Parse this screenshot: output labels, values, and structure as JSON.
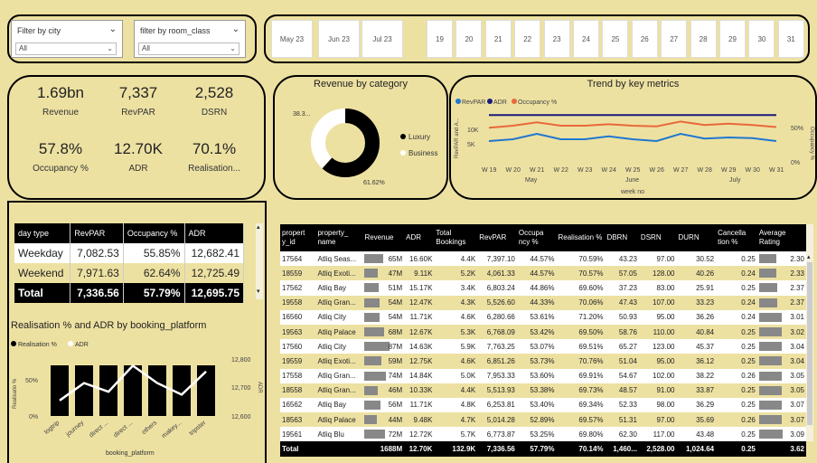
{
  "filters": [
    {
      "title": "Filter by city",
      "value": "All"
    },
    {
      "title": "filter by room_class",
      "value": "All"
    }
  ],
  "months": [
    "May 23",
    "Jun 23",
    "Jul 23"
  ],
  "days": [
    "19",
    "20",
    "21",
    "22",
    "23",
    "24",
    "25",
    "26",
    "27",
    "28",
    "29",
    "30",
    "31"
  ],
  "kpis": [
    {
      "value": "1.69bn",
      "label": "Revenue"
    },
    {
      "value": "7,337",
      "label": "RevPAR"
    },
    {
      "value": "2,528",
      "label": "DSRN"
    },
    {
      "value": "57.8%",
      "label": "Occupancy %"
    },
    {
      "value": "12.70K",
      "label": "ADR"
    },
    {
      "value": "70.1%",
      "label": "Realisation..."
    }
  ],
  "revenue_chart": {
    "title": "Revenue by category",
    "legend": [
      "Luxury",
      "Business"
    ],
    "colors": [
      "#000000",
      "#ffffff"
    ],
    "label_a": "38.3...",
    "label_b": "61.62%"
  },
  "trend_chart": {
    "title": "Trend by key metrics",
    "legend": [
      "RevPAR",
      "ADR",
      "Occupancy %"
    ],
    "colors": [
      "#1f77d0",
      "#1a1a7a",
      "#e8693a"
    ],
    "y_left_label": "RevPAR and A...",
    "y_left_ticks": [
      "10K",
      "5K"
    ],
    "y_right_label": "Occupancy %",
    "y_right_ticks": [
      "50%",
      "0%"
    ],
    "x_ticks": [
      "W 19",
      "W 20",
      "W 21",
      "W 22",
      "W 23",
      "W 24",
      "W 25",
      "W 26",
      "W 27",
      "W 28",
      "W 29",
      "W 30",
      "W 31"
    ],
    "month_labels": [
      "May",
      "June",
      "July"
    ],
    "x_title": "week no"
  },
  "day_table": {
    "headers": [
      "day type",
      "RevPAR",
      "Occupancy %",
      "ADR"
    ],
    "rows": [
      [
        "Weekday",
        "7,082.53",
        "55.85%",
        "12,682.41"
      ],
      [
        "Weekend",
        "7,971.63",
        "62.64%",
        "12,725.49"
      ]
    ],
    "total": [
      "Total",
      "7,336.56",
      "57.79%",
      "12,695.75"
    ]
  },
  "platform_chart": {
    "title": "Realisation % and ADR by booking_platform",
    "legend": [
      "Realisation %",
      "ADR"
    ],
    "y_left_label": "Realisatio %",
    "y_left_ticks": [
      "50%",
      "0%"
    ],
    "y_right_label": "ADR",
    "y_right_ticks": [
      "12,800",
      "12,700",
      "12,600"
    ],
    "x_title": "booking_platform",
    "categories": [
      "logtrip",
      "journey",
      "direct ...",
      "direct ...",
      "others",
      "makey...",
      "tripster"
    ]
  },
  "chart_data": [
    {
      "type": "pie",
      "title": "Revenue by category",
      "categories": [
        "Luxury",
        "Business"
      ],
      "values": [
        61.62,
        38.38
      ]
    },
    {
      "type": "line",
      "title": "Trend by key metrics",
      "xlabel": "week no",
      "x": [
        "W 19",
        "W 20",
        "W 21",
        "W 22",
        "W 23",
        "W 24",
        "W 25",
        "W 26",
        "W 27",
        "W 28",
        "W 29",
        "W 30",
        "W 31"
      ],
      "series": [
        {
          "name": "ADR",
          "values": [
            12700,
            12700,
            12700,
            12700,
            12700,
            12700,
            12700,
            12700,
            12700,
            12700,
            12700,
            12700,
            12700
          ]
        },
        {
          "name": "RevPAR",
          "values": [
            5500,
            6000,
            7500,
            6000,
            6000,
            6800,
            6000,
            5500,
            7500,
            6200,
            6500,
            6300,
            5500
          ]
        },
        {
          "name": "Occupancy %",
          "values": [
            51,
            54,
            59,
            54,
            54,
            56,
            54,
            53,
            60,
            55,
            57,
            55,
            52
          ]
        }
      ]
    },
    {
      "type": "bar",
      "title": "Realisation % and ADR by booking_platform",
      "xlabel": "booking_platform",
      "categories": [
        "logtrip",
        "journey",
        "direct ...",
        "direct ...",
        "others",
        "makey...",
        "tripster"
      ],
      "series": [
        {
          "name": "Realisation %",
          "values": [
            70,
            70,
            70,
            70,
            70,
            70,
            70
          ]
        },
        {
          "name": "ADR",
          "values": [
            12660,
            12720,
            12690,
            12780,
            12720,
            12680,
            12760
          ]
        }
      ]
    }
  ],
  "hotel_table": {
    "headers": [
      "propert y_id",
      "property_ name",
      "Revenue",
      "ADR",
      "Total Bookings",
      "RevPAR",
      "Occupa ncy %",
      "Realisation %",
      "DBRN",
      "DSRN",
      "DURN",
      "Cancella tion %",
      "Average Rating"
    ],
    "rows": [
      [
        "17564",
        "Atliq Seas...",
        "65M",
        "16.60K",
        "4.4K",
        "7,397.10",
        "44.57%",
        "70.59%",
        "43.23",
        "97.00",
        "30.52",
        "0.25",
        "2.30"
      ],
      [
        "18559",
        "Atliq Exoti...",
        "47M",
        "9.11K",
        "5.2K",
        "4,061.33",
        "44.57%",
        "70.57%",
        "57.05",
        "128.00",
        "40.26",
        "0.24",
        "2.33"
      ],
      [
        "17562",
        "Atliq Bay",
        "51M",
        "15.17K",
        "3.4K",
        "6,803.24",
        "44.86%",
        "69.60%",
        "37.23",
        "83.00",
        "25.91",
        "0.25",
        "2.37"
      ],
      [
        "19558",
        "Atliq Gran...",
        "54M",
        "12.47K",
        "4.3K",
        "5,526.60",
        "44.33%",
        "70.06%",
        "47.43",
        "107.00",
        "33.23",
        "0.24",
        "2.37"
      ],
      [
        "16560",
        "Atliq City",
        "54M",
        "11.71K",
        "4.6K",
        "6,280.66",
        "53.61%",
        "71.20%",
        "50.93",
        "95.00",
        "36.26",
        "0.24",
        "3.01"
      ],
      [
        "19563",
        "Atliq Palace",
        "68M",
        "12.67K",
        "5.3K",
        "6,768.09",
        "53.42%",
        "69.50%",
        "58.76",
        "110.00",
        "40.84",
        "0.25",
        "3.02"
      ],
      [
        "17560",
        "Atliq City",
        "87M",
        "14.63K",
        "5.9K",
        "7,763.25",
        "53.07%",
        "69.51%",
        "65.27",
        "123.00",
        "45.37",
        "0.25",
        "3.04"
      ],
      [
        "19559",
        "Atliq Exoti...",
        "59M",
        "12.75K",
        "4.6K",
        "6,851.26",
        "53.73%",
        "70.76%",
        "51.04",
        "95.00",
        "36.12",
        "0.25",
        "3.04"
      ],
      [
        "17558",
        "Atliq Gran...",
        "74M",
        "14.84K",
        "5.0K",
        "7,953.33",
        "53.60%",
        "69.91%",
        "54.67",
        "102.00",
        "38.22",
        "0.26",
        "3.05"
      ],
      [
        "18558",
        "Atliq Gran...",
        "46M",
        "10.33K",
        "4.4K",
        "5,513.93",
        "53.38%",
        "69.73%",
        "48.57",
        "91.00",
        "33.87",
        "0.25",
        "3.05"
      ],
      [
        "16562",
        "Atliq Bay",
        "56M",
        "11.71K",
        "4.8K",
        "6,253.81",
        "53.40%",
        "69.34%",
        "52.33",
        "98.00",
        "36.29",
        "0.25",
        "3.07"
      ],
      [
        "18563",
        "Atliq Palace",
        "44M",
        "9.48K",
        "4.7K",
        "5,014.28",
        "52.89%",
        "69.57%",
        "51.31",
        "97.00",
        "35.69",
        "0.26",
        "3.07"
      ],
      [
        "19561",
        "Atliq Blu",
        "72M",
        "12.72K",
        "5.7K",
        "6,773.87",
        "53.25%",
        "69.80%",
        "62.30",
        "117.00",
        "43.48",
        "0.25",
        "3.09"
      ]
    ],
    "total": [
      "Total",
      "",
      "1688M",
      "12.70K",
      "132.9K",
      "7,336.56",
      "57.79%",
      "70.14%",
      "1,460...",
      "2,528.00",
      "1,024.64",
      "0.25",
      "3.62"
    ]
  }
}
